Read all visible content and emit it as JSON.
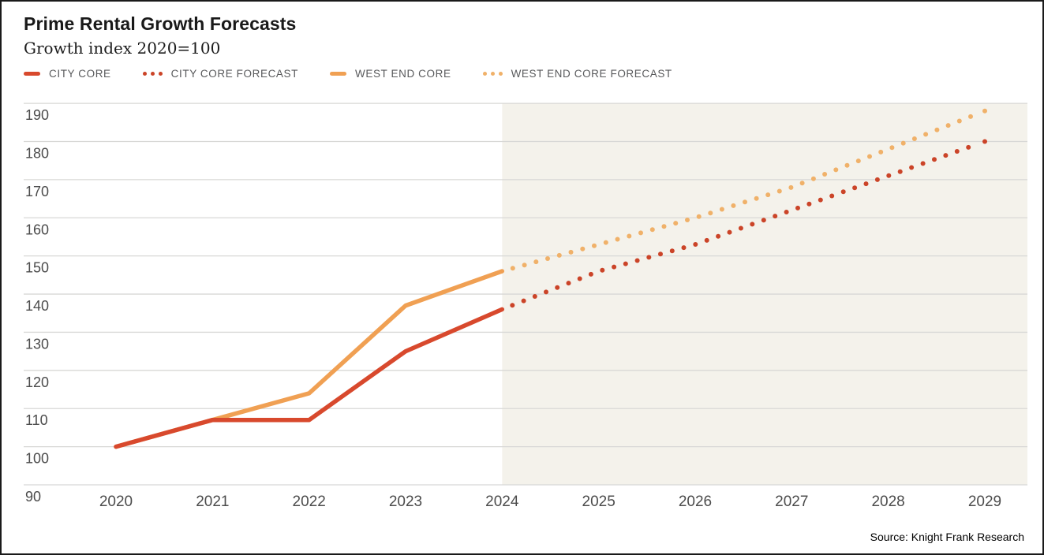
{
  "header": {
    "title": "Prime Rental Growth Forecasts",
    "subtitle": "Growth index 2020=100"
  },
  "legend": [
    {
      "label": "CITY CORE",
      "type": "solid",
      "color": "#d8492d"
    },
    {
      "label": "CITY CORE FORECAST",
      "type": "dotted",
      "color": "#cb4428"
    },
    {
      "label": "WEST END CORE",
      "type": "solid",
      "color": "#f0a053"
    },
    {
      "label": "WEST END CORE FORECAST",
      "type": "dotted",
      "color": "#f0b169"
    }
  ],
  "footer": {
    "source": "Source: Knight Frank Research"
  },
  "chart_data": {
    "type": "line",
    "title": "Prime Rental Growth Forecasts",
    "subtitle": "Growth index 2020=100",
    "categories": [
      2020,
      2021,
      2022,
      2023,
      2024,
      2025,
      2026,
      2027,
      2028,
      2029
    ],
    "series": [
      {
        "name": "WEST END CORE",
        "style": "solid",
        "color": "#f0a053",
        "x": [
          2020,
          2021,
          2022,
          2023,
          2024
        ],
        "values": [
          100,
          107,
          114,
          137,
          146
        ]
      },
      {
        "name": "CITY CORE",
        "style": "solid",
        "color": "#d8492d",
        "x": [
          2020,
          2021,
          2022,
          2023,
          2024
        ],
        "values": [
          100,
          107,
          107,
          125,
          136
        ]
      },
      {
        "name": "WEST END CORE FORECAST",
        "style": "dotted",
        "color": "#f0b169",
        "x": [
          2024,
          2025,
          2026,
          2027,
          2028,
          2029
        ],
        "values": [
          146,
          153,
          160,
          168,
          178,
          188
        ]
      },
      {
        "name": "CITY CORE FORECAST",
        "style": "dotted",
        "color": "#cb4428",
        "x": [
          2024,
          2025,
          2026,
          2027,
          2028,
          2029
        ],
        "values": [
          136,
          146,
          153,
          162,
          171,
          180
        ]
      }
    ],
    "xlabel": "",
    "ylabel": "",
    "ylim": [
      90,
      190
    ],
    "y_ticks": [
      90,
      100,
      110,
      120,
      130,
      140,
      150,
      160,
      170,
      180,
      190
    ],
    "grid": true,
    "legend_position": "top",
    "forecast_band": {
      "from": 2024,
      "to": 2029,
      "color": "#f4f2eb"
    },
    "gridline_color": "#d8d8d6",
    "tick_label_color": "#4c4c4c"
  }
}
